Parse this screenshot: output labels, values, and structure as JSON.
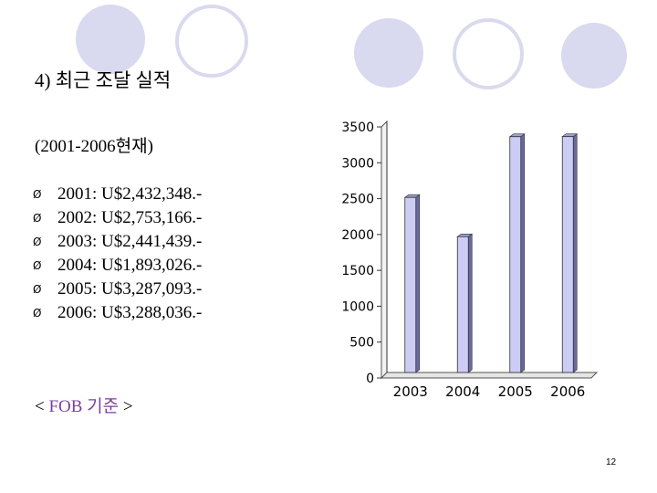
{
  "slide": {
    "title": "4) 최근 조달 실적",
    "subtitle": "(2001-2006현재)",
    "bullet_marker": "Ø",
    "bullets": [
      "2001: U$2,432,348.-",
      "2002: U$2,753,166.-",
      "2003: U$2,441,439.-",
      "2004: U$1,893,026.-",
      "2005: U$3,287,093.-",
      "2006: U$3,288,036.-"
    ],
    "footnote": {
      "open": "< ",
      "basis": "FOB 기준",
      "close": " >"
    },
    "page_number": "12"
  },
  "colors": {
    "bar_face": "#ccccf5",
    "bar_side": "#6a6aa0",
    "decor": "#d9d9ef",
    "footnote_accent": "#7b3f9d"
  },
  "chart_data": {
    "type": "bar",
    "categories": [
      "2003",
      "2004",
      "2005",
      "2006"
    ],
    "values": [
      2441,
      1893,
      3287,
      3288
    ],
    "ylim": [
      0,
      3500
    ],
    "yticks": [
      0,
      500,
      1000,
      1500,
      2000,
      2500,
      3000,
      3500
    ],
    "title": "",
    "xlabel": "",
    "ylabel": "",
    "grid": false,
    "style": "3d"
  }
}
